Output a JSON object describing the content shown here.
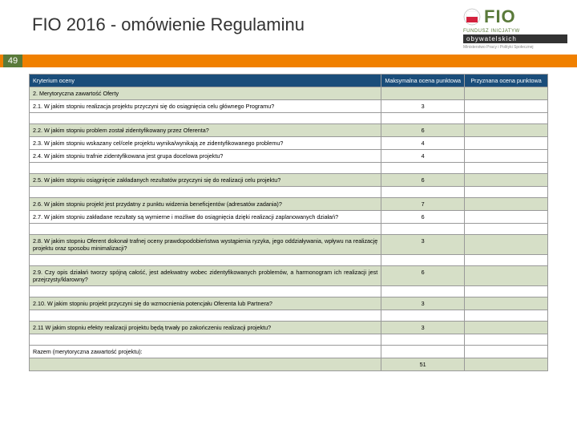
{
  "title": "FIO 2016 - omówienie Regulaminu",
  "page_number": "49",
  "logo": {
    "text": "FIO",
    "line1": "FUNDUSZ INICJATYW",
    "line2": "obywatelskich",
    "line3": "Ministerstwo Pracy i Polityki Społecznej"
  },
  "table": {
    "headers": {
      "criterion": "Kryterium oceny",
      "max": "Maksymalna ocena punktowa",
      "awarded": "Przyznana ocena punktowa"
    },
    "rows": [
      {
        "text": "2. Merytoryczna zawartość Oferty",
        "max": "",
        "shade": true,
        "span": false
      },
      {
        "text": "2.1. W jakim stopniu realizacja projektu przyczyni się do osiągnięcia celu głównego Programu?",
        "max": "3",
        "shade": false
      },
      {
        "blank": true
      },
      {
        "text": "2.2. W jakim stopniu problem został zidentyfikowany przez Oferenta?",
        "max": "6",
        "shade": true
      },
      {
        "text": "2.3. W jakim stopniu wskazany cel/cele projektu wynika/wynikają ze zidentyfikowanego problemu?",
        "max": "4",
        "shade": false
      },
      {
        "text": "2.4. W jakim stopniu trafnie zidentyfikowana jest grupa docelowa projektu?",
        "max": "4",
        "shade": false
      },
      {
        "blank": true
      },
      {
        "text": "2.5. W jakim stopniu osiągnięcie zakładanych rezultatów przyczyni się do realizacji celu projektu?",
        "max": "6",
        "shade": true
      },
      {
        "blank": true
      },
      {
        "text": "2.6. W jakim stopniu projekt jest przydatny z punktu widzenia beneficjentów (adresatów zadania)?",
        "max": "7",
        "shade": true
      },
      {
        "text": "2.7. W jakim stopniu zakładane rezultaty są wymierne i możliwe do osiągnięcia dzięki realizacji zaplanowanych działań?",
        "max": "6",
        "shade": false
      },
      {
        "blank": true
      },
      {
        "text": "2.8. W jakim stopniu Oferent dokonał trafnej oceny prawdopodobieństwa wystąpienia ryzyka, jego oddziaływania, wpływu na realizację projektu oraz sposobu minimalizacji?",
        "max": "3",
        "shade": true
      },
      {
        "blank": true
      },
      {
        "text": "2.9. Czy opis działań tworzy spójną całość, jest adekwatny wobec zidentyfikowanych problemów, a harmonogram ich realizacji jest przejrzysty/klarowny?",
        "max": "6",
        "shade": true
      },
      {
        "blank": true
      },
      {
        "text": "2.10. W jakim stopniu projekt przyczyni się do wzmocnienia potencjału Oferenta lub Partnera?",
        "max": "3",
        "shade": true
      },
      {
        "blank": true
      },
      {
        "text": "2.11 W jakim stopniu efekty realizacji projektu będą trwały po zakończeniu realizacji projektu?",
        "max": "3",
        "shade": true
      },
      {
        "blank": true
      },
      {
        "text": "Razem (merytoryczna zawartość projektu):",
        "max": "",
        "shade": false
      },
      {
        "text": "",
        "max": "51",
        "shade": true,
        "total": true
      }
    ]
  }
}
